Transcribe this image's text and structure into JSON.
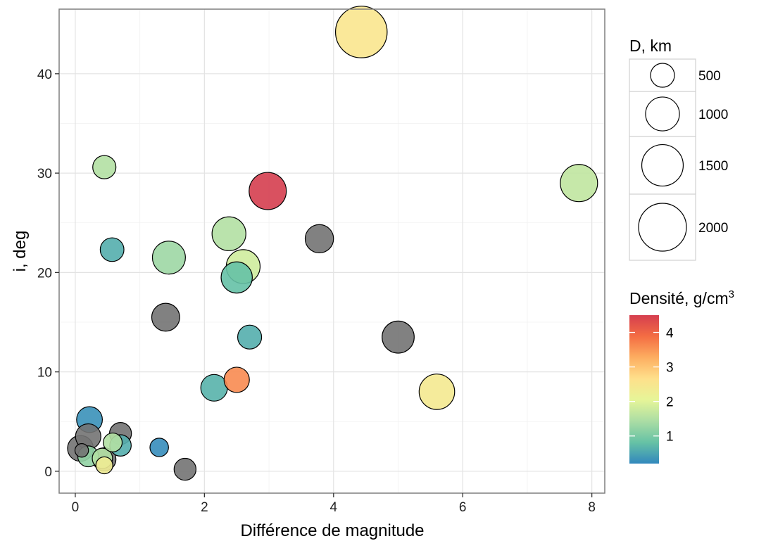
{
  "chart_data": {
    "type": "scatter",
    "xlabel": "Différence de magnitude",
    "ylabel": "i, deg",
    "xlim": [
      -0.25,
      8.2
    ],
    "ylim": [
      -2.2,
      46.5
    ],
    "x_ticks": [
      0,
      2,
      4,
      6,
      8
    ],
    "x_tick_labels": [
      "0",
      "2",
      "4",
      "6",
      "8"
    ],
    "y_ticks": [
      0,
      10,
      20,
      30,
      40
    ],
    "y_tick_labels": [
      "0",
      "10",
      "20",
      "30",
      "40"
    ],
    "grid": true,
    "size_legend": {
      "title": "D, km",
      "values": [
        500,
        1000,
        1500,
        2000
      ],
      "labels": [
        "500",
        "1000",
        "1500",
        "2000"
      ]
    },
    "color_legend": {
      "title": "Densité, g/cm",
      "title_superscript": "3",
      "range": [
        0.2,
        4.5
      ],
      "ticks": [
        1,
        2,
        3,
        4
      ],
      "tick_labels": [
        "1",
        "2",
        "3",
        "4"
      ],
      "palette": [
        "#3288bd",
        "#66c2a5",
        "#abdda4",
        "#e6f598",
        "#fee08b",
        "#fdae61",
        "#f46d43",
        "#d53e4f"
      ],
      "na_color": "#737373"
    },
    "points": [
      {
        "x": 4.43,
        "y": 44.2,
        "d": 2326,
        "density": 2.52
      },
      {
        "x": 7.8,
        "y": 29.0,
        "d": 1212,
        "density": 1.65
      },
      {
        "x": 2.98,
        "y": 28.2,
        "d": 1210,
        "density": 4.5
      },
      {
        "x": 5.6,
        "y": 8.0,
        "d": 1100,
        "density": 2.4
      },
      {
        "x": 2.38,
        "y": 23.9,
        "d": 1000,
        "density": 1.5
      },
      {
        "x": 2.6,
        "y": 20.6,
        "d": 1000,
        "density": 1.8
      },
      {
        "x": 1.45,
        "y": 21.5,
        "d": 950,
        "density": 1.3
      },
      {
        "x": 2.5,
        "y": 19.5,
        "d": 850,
        "density": 0.8
      },
      {
        "x": 3.78,
        "y": 23.4,
        "d": 700,
        "density": null
      },
      {
        "x": 5.0,
        "y": 13.5,
        "d": 900,
        "density": null
      },
      {
        "x": 1.4,
        "y": 15.5,
        "d": 680,
        "density": null
      },
      {
        "x": 2.15,
        "y": 8.4,
        "d": 620,
        "density": 0.65
      },
      {
        "x": 2.5,
        "y": 9.2,
        "d": 560,
        "density": 3.6
      },
      {
        "x": 2.7,
        "y": 13.5,
        "d": 500,
        "density": 0.6
      },
      {
        "x": 0.45,
        "y": 30.6,
        "d": 470,
        "density": 1.5
      },
      {
        "x": 0.57,
        "y": 22.3,
        "d": 490,
        "density": 0.6
      },
      {
        "x": 0.22,
        "y": 5.2,
        "d": 580,
        "density": 0.3
      },
      {
        "x": 0.2,
        "y": 3.5,
        "d": 560,
        "density": null
      },
      {
        "x": 0.7,
        "y": 3.8,
        "d": 420,
        "density": null
      },
      {
        "x": 0.7,
        "y": 2.6,
        "d": 400,
        "density": 0.6
      },
      {
        "x": 0.58,
        "y": 2.9,
        "d": 310,
        "density": 1.5
      },
      {
        "x": 0.08,
        "y": 2.3,
        "d": 580,
        "density": null
      },
      {
        "x": 0.1,
        "y": 2.1,
        "d": 160,
        "density": null
      },
      {
        "x": 0.2,
        "y": 1.5,
        "d": 380,
        "density": 1.2
      },
      {
        "x": 0.45,
        "y": 1.2,
        "d": 470,
        "density": null
      },
      {
        "x": 0.42,
        "y": 1.3,
        "d": 360,
        "density": 1.5
      },
      {
        "x": 0.45,
        "y": 0.6,
        "d": 250,
        "density": 2.3
      },
      {
        "x": 1.3,
        "y": 2.4,
        "d": 300,
        "density": 0.25
      },
      {
        "x": 1.7,
        "y": 0.2,
        "d": 420,
        "density": null
      }
    ]
  }
}
